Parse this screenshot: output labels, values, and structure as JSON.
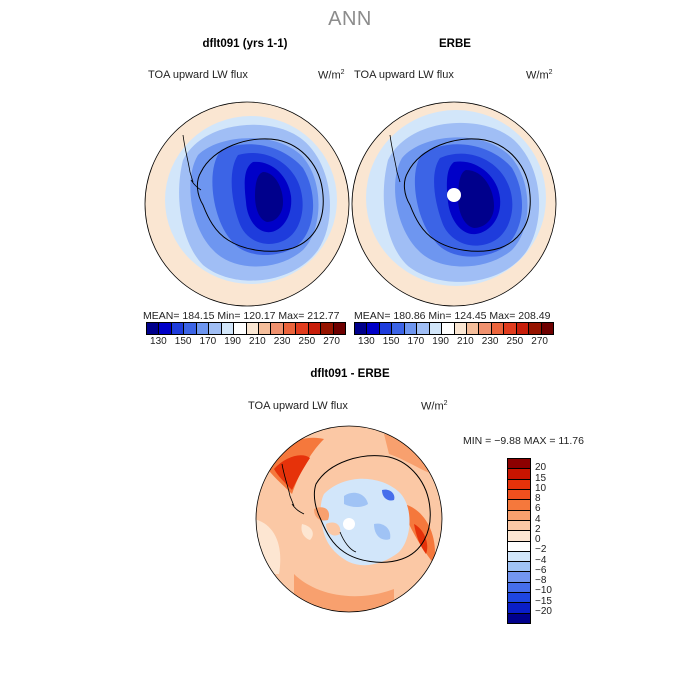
{
  "figure": {
    "title": "ANN"
  },
  "panels": {
    "model": {
      "title": "dflt091 (yrs 1-1)",
      "variable": "TOA upward LW flux",
      "units_base": "W/m",
      "units_exp": "2",
      "stats": "MEAN= 184.15   Min= 120.17   Max= 212.77"
    },
    "obs": {
      "title": "ERBE",
      "variable": "TOA upward LW flux",
      "units_base": "W/m",
      "units_exp": "2",
      "stats": "MEAN= 180.86   Min= 124.45   Max= 208.49"
    },
    "diff": {
      "title": "dflt091 - ERBE",
      "variable": "TOA upward LW flux",
      "units_base": "W/m",
      "units_exp": "2",
      "stats": "MIN =   −9.88  MAX =   11.76"
    }
  },
  "colorbars": {
    "abs_labels": [
      "130",
      "150",
      "170",
      "190",
      "210",
      "230",
      "250",
      "270"
    ],
    "abs_colors": [
      "#00008c",
      "#0000c8",
      "#1e3cdc",
      "#3c64e6",
      "#6e96f0",
      "#a0bef5",
      "#d2e6fa",
      "#ffffff",
      "#fae6d2",
      "#f5be9b",
      "#f0916e",
      "#eb643c",
      "#e13c1e",
      "#c81e0a",
      "#961400",
      "#6e0000"
    ],
    "diff_labels": [
      "20",
      "15",
      "10",
      "8",
      "6",
      "4",
      "2",
      "0",
      "−2",
      "−4",
      "−6",
      "−8",
      "−10",
      "−15",
      "−20"
    ],
    "diff_colors": [
      "#8c0000",
      "#c81400",
      "#e6320a",
      "#f0501e",
      "#f5783c",
      "#f8a06e",
      "#fbc8a5",
      "#fde6d2",
      "#ffffff",
      "#d2e6fa",
      "#a0c3f5",
      "#7396f0",
      "#466eeb",
      "#1e46e1",
      "#0a1ec8",
      "#00008c"
    ]
  }
}
